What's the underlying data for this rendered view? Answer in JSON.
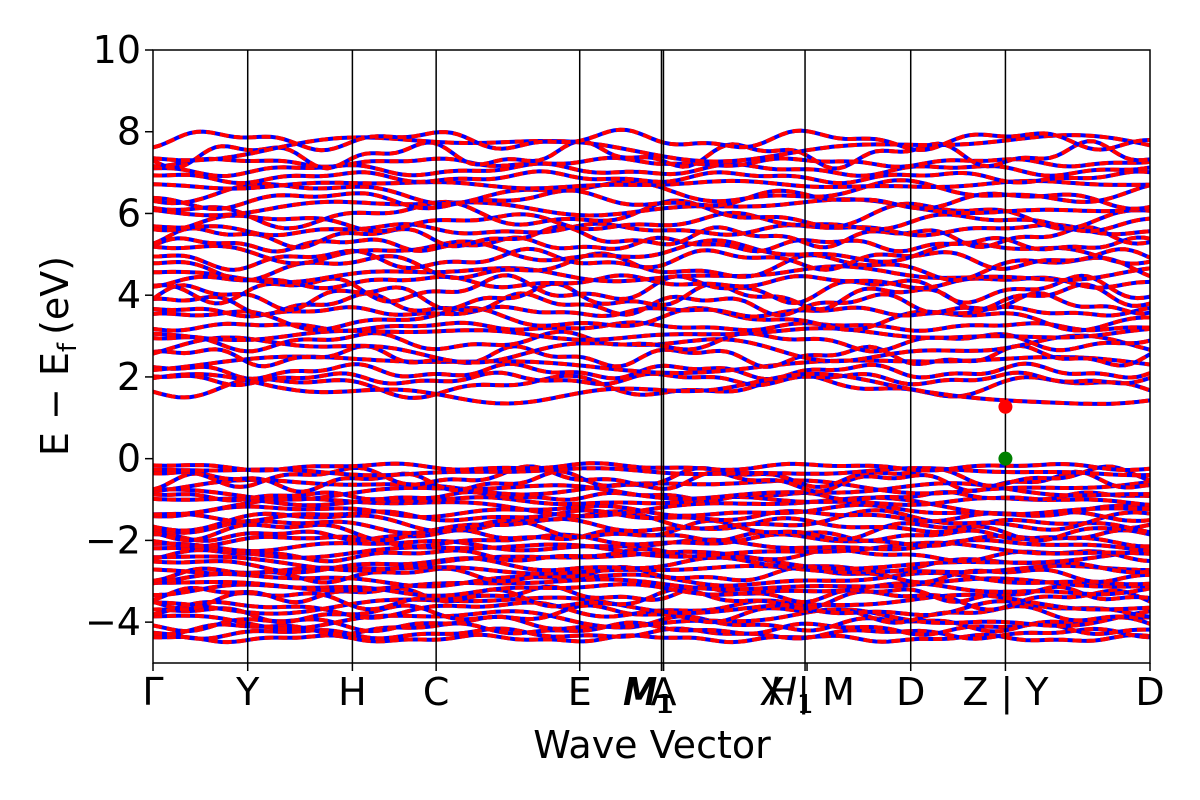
{
  "chart_data": {
    "type": "line",
    "xlabel": "Wave Vector",
    "ylabel": "E − E",
    "ylabel_sub": "f",
    "ylabel_unit": "(eV)",
    "ylim": [
      -5,
      10
    ],
    "yticks": [
      -4,
      -2,
      0,
      2,
      4,
      6,
      8,
      10
    ],
    "ytick_labels": [
      "−4",
      "−2",
      "0",
      "2",
      "4",
      "6",
      "8",
      "10"
    ],
    "xlim": [
      0,
      10
    ],
    "kpoints": [
      {
        "x": 0.0,
        "label": "Γ"
      },
      {
        "x": 0.95,
        "label": "Y"
      },
      {
        "x": 2.0,
        "label": "H"
      },
      {
        "x": 2.84,
        "label": "C"
      },
      {
        "x": 4.28,
        "label": "E"
      },
      {
        "x": 5.1,
        "label": "M"
      },
      {
        "x": 5.12,
        "label": "M"
      },
      {
        "x": 5.12,
        "label": "A"
      },
      {
        "x": 6.54,
        "label": "H"
      },
      {
        "x": 6.56,
        "label": "X | M"
      },
      {
        "x": 7.6,
        "label": "D"
      },
      {
        "x": 8.55,
        "label": "Z | Y"
      },
      {
        "x": 10.0,
        "label": "D"
      }
    ],
    "kpoint_label_subs": [
      "",
      "",
      "",
      "",
      "",
      "1",
      "1",
      "",
      "1",
      "",
      "",
      "",
      ""
    ],
    "vlines": [
      0.95,
      2.0,
      2.84,
      4.28,
      5.1,
      5.12,
      6.54,
      7.6,
      8.55
    ],
    "series": [
      {
        "color": "#0000ff",
        "style": "solid"
      },
      {
        "color": "#ff0000",
        "style": "dashed"
      }
    ],
    "markers": [
      {
        "label": "CBM",
        "x": 8.55,
        "y": 1.27,
        "color": "#ff0000"
      },
      {
        "label": "VBM",
        "x": 8.55,
        "y": 0.0,
        "color": "#008000"
      }
    ],
    "band_ranges": {
      "valence": [
        -4.5,
        0.0
      ],
      "conduction": [
        1.27,
        8.0
      ]
    }
  }
}
